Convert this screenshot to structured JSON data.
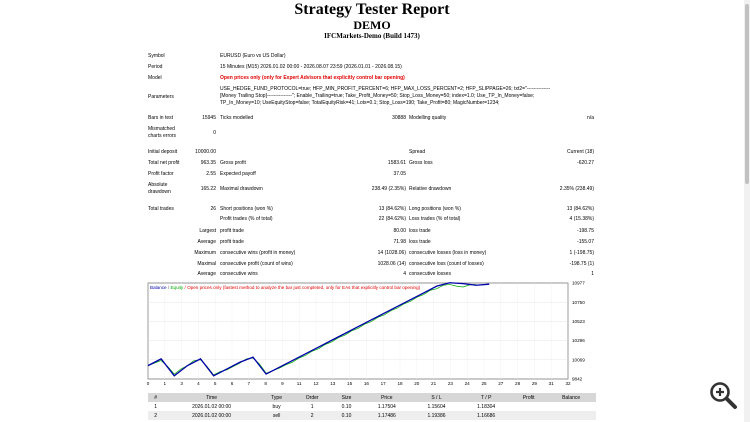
{
  "report": {
    "title": "Strategy Tester Report",
    "account_type": "DEMO",
    "server": "IFCMarkets-Demo (Build 1473)"
  },
  "settings": {
    "symbol_label": "Symbol",
    "symbol_value": "EURUSD (Euro vs US Dollar)",
    "period_label": "Period",
    "period_value": "15 Minutes (M15) 2026.01.02 00:00 - 2026.08.07 23:59 (2026.01.01 - 2026.08.15)",
    "model_label": "Model",
    "model_value": "Open prices only (only for Expert Advisors that explicitly control bar opening)",
    "parameters_label": "Parameters",
    "parameters_line1": "USE_HEDGE_FUND_PROTOCOL=true; HFP_MIN_PROFIT_PERCENT=6; HFP_MAX_LOSS_PERCENT=2; HFP_SLIPPAGE=26; txt2=\"--------------",
    "parameters_line2": "[Money Trailing Stop]---------------\"; Enable_Trailing=true; Take_Profit_Money=50; Stop_Loss_Money=50; index=1.0; Use_TP_In_Money=false;",
    "parameters_line3": "TP_In_Money=10; UseEquityStop=false; TotalEquityRisk=41; Lots=0.1; Stop_Loss=190; Take_Profit=80; MagicNumber=1234;",
    "bars_label": "Bars in test",
    "bars_value": "15945",
    "ticks_label": "Ticks modelled",
    "ticks_value": "30888",
    "quality_label": "Modelling quality",
    "quality_value": "n/a",
    "mismatched_label1": "Mismatched",
    "mismatched_label2": "charts errors",
    "mismatched_value": "0"
  },
  "results": {
    "initial_deposit_label": "Initial deposit",
    "initial_deposit": "10000.00",
    "spread_label": "Spread",
    "spread": "Current (18)",
    "net_profit_label": "Total net profit",
    "net_profit": "963.35",
    "gross_profit_label": "Gross profit",
    "gross_profit": "1583.61",
    "gross_loss_label": "Gross loss",
    "gross_loss": "-620.27",
    "profit_factor_label": "Profit factor",
    "profit_factor": "2.55",
    "expected_payoff_label": "Expected payoff",
    "expected_payoff": "37.05",
    "absolute_dd_label1": "Absolute",
    "absolute_dd_label2": "drawdown",
    "absolute_dd": "165.22",
    "maximal_dd_label": "Maximal drawdown",
    "maximal_dd": "238.49 (2.35%)",
    "relative_dd_label": "Relative drawdown",
    "relative_dd": "2.35% (238.49)",
    "total_trades_label": "Total trades",
    "total_trades": "26",
    "short_label": "Short positions (won %)",
    "short": "13 (84.62%)",
    "long_label": "Long positions (won %)",
    "long": "13 (84.62%)",
    "profit_trades_label": "Profit trades (% of total)",
    "profit_trades": "22 (84.62%)",
    "loss_trades_label": "Loss trades (% of total)",
    "loss_trades": "4 (15.38%)",
    "largest_label": "Largest",
    "average_label": "Average",
    "maximum_label": "Maximum",
    "maximal_label": "Maximal",
    "largest_profit_label": "profit trade",
    "largest_profit": "80.00",
    "largest_loss_label": "loss trade",
    "largest_loss": "-198.75",
    "average_profit_label": "profit trade",
    "average_profit": "71.98",
    "average_loss_label": "loss trade",
    "average_loss": "-155.07",
    "max_cons_wins_label": "consecutive wins (profit in money)",
    "max_cons_wins": "14 (1028.06)",
    "max_cons_losses_label": "consecutive losses (loss in money)",
    "max_cons_losses": "1 (-198.75)",
    "maximal_cons_profit_label": "consecutive profit (count of wins)",
    "maximal_cons_profit": "1028.06 (14)",
    "maximal_cons_loss_label": "consecutive loss (count of losses)",
    "maximal_cons_loss": "-198.75 (1)",
    "avg_cons_wins_label": "consecutive wins",
    "avg_cons_wins": "4",
    "avg_cons_losses_label": "consecutive losses",
    "avg_cons_losses": "1"
  },
  "chart_data": {
    "type": "line",
    "title": "Balance / Equity / Open prices only (fastest method to analyze the bar just completed, only for EAs that explicitly control bar opening)",
    "legend_balance": "Balance",
    "legend_separator": " / ",
    "legend_equity": "Equity",
    "legend_rest": " / Open prices only (fastest method to analyze the bar just completed, only for EAs that explicitly control bar opening)",
    "x_ticks": [
      "0",
      "1",
      "3",
      "4",
      "5",
      "6",
      "7",
      "8",
      "9",
      "11",
      "12",
      "13",
      "15",
      "16",
      "17",
      "18",
      "20",
      "21",
      "23",
      "24",
      "25",
      "27",
      "28",
      "29",
      "31",
      "32"
    ],
    "y_ticks": [
      "10977",
      "10750",
      "10523",
      "10296",
      "10069",
      "9842"
    ],
    "ylim": [
      9842,
      10977
    ],
    "xlim": [
      0,
      32
    ],
    "series": [
      {
        "name": "Balance",
        "x": [
          0,
          1,
          2,
          3,
          4,
          5,
          6,
          7,
          8,
          9,
          10,
          11,
          12,
          13,
          14,
          15,
          16,
          17,
          18,
          19,
          20,
          21,
          22,
          23,
          24,
          25,
          26
        ],
        "values": [
          10000,
          10080,
          9880,
          10000,
          10080,
          9880,
          9960,
          10040,
          10100,
          9900,
          9980,
          10060,
          10140,
          10220,
          10300,
          10380,
          10460,
          10540,
          10620,
          10700,
          10780,
          10860,
          10940,
          10980,
          10970,
          10950,
          10963
        ]
      },
      {
        "name": "Equity",
        "x": [
          0,
          0.5,
          1,
          1.5,
          2,
          2.5,
          3,
          3.5,
          4,
          4.5,
          5,
          5.5,
          6,
          6.5,
          7,
          7.5,
          8,
          8.5,
          9,
          9.5,
          10,
          10.5,
          11,
          11.5,
          12,
          12.5,
          13,
          13.5,
          14,
          14.5,
          15,
          15.5,
          16,
          16.5,
          17,
          17.5,
          18,
          18.5,
          19,
          19.5,
          20,
          20.5,
          21,
          21.5,
          22,
          22.5,
          23,
          23.5,
          24,
          24.5,
          25
        ],
        "values": [
          10000,
          10030,
          10060,
          9990,
          9900,
          9960,
          10000,
          10060,
          10070,
          9990,
          9890,
          9930,
          9950,
          9990,
          10030,
          10080,
          10090,
          10020,
          9910,
          9940,
          9970,
          10010,
          10040,
          10090,
          10120,
          10170,
          10200,
          10250,
          10280,
          10330,
          10360,
          10410,
          10440,
          10490,
          10520,
          10570,
          10600,
          10650,
          10680,
          10730,
          10760,
          10810,
          10840,
          10890,
          10910,
          10950,
          10960,
          10940,
          10930,
          10955,
          10960
        ]
      }
    ]
  },
  "deals": {
    "headers": [
      "#",
      "Time",
      "Type",
      "Order",
      "Size",
      "Price",
      "S / L",
      "T / P",
      "Profit",
      "Balance"
    ],
    "rows": [
      [
        "1",
        "2026.01.02 00:00",
        "buy",
        "1",
        "0.10",
        "1.17504",
        "1.15604",
        "1.18304",
        "",
        ""
      ],
      [
        "2",
        "2026.01.02 00:00",
        "sell",
        "2",
        "0.10",
        "1.17486",
        "1.19386",
        "1.16686",
        "",
        ""
      ]
    ]
  },
  "colors": {
    "balance": "#0000aa",
    "equity": "#00aa00",
    "model_text": "#e00000"
  }
}
